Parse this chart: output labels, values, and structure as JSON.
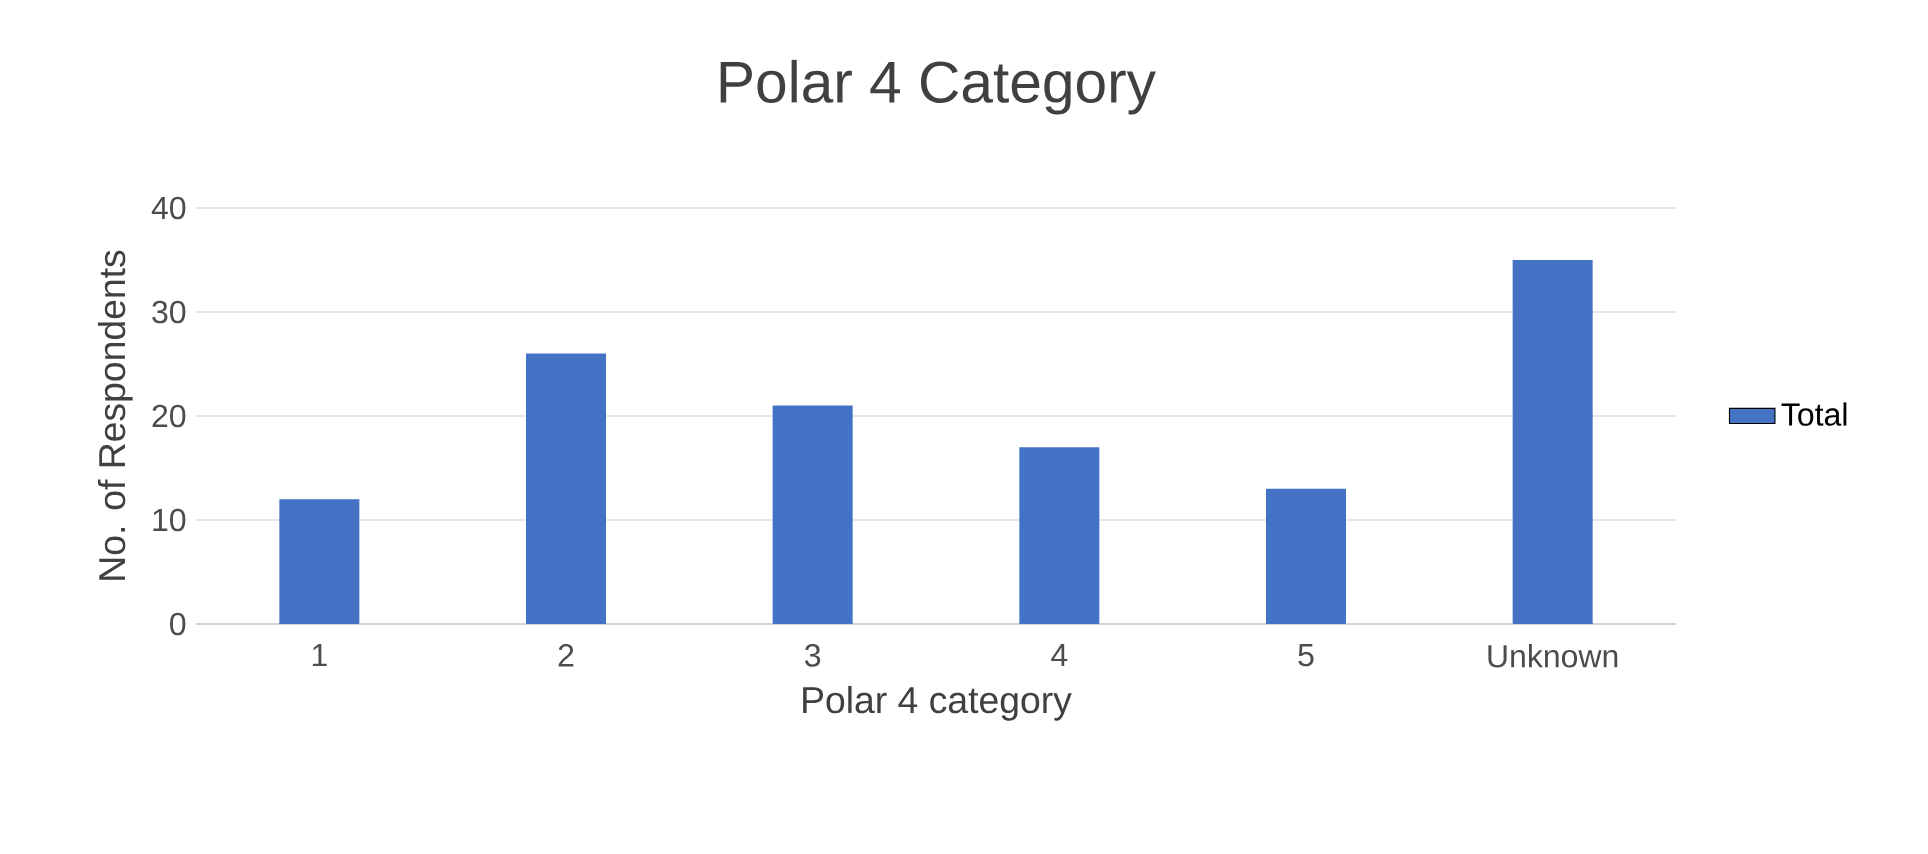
{
  "chart_data": {
    "type": "bar",
    "title": "Polar 4 Category",
    "xlabel": "Polar 4 category",
    "ylabel": "No. of Respondents",
    "categories": [
      "1",
      "2",
      "3",
      "4",
      "5",
      "Unknown"
    ],
    "series": [
      {
        "name": "Total",
        "color": "#4472c4",
        "values": [
          12,
          26,
          21,
          17,
          13,
          35
        ]
      }
    ],
    "ylim": [
      0,
      40
    ],
    "yticks": [
      0,
      10,
      20,
      30,
      40
    ],
    "grid": "y",
    "legend": "right"
  }
}
